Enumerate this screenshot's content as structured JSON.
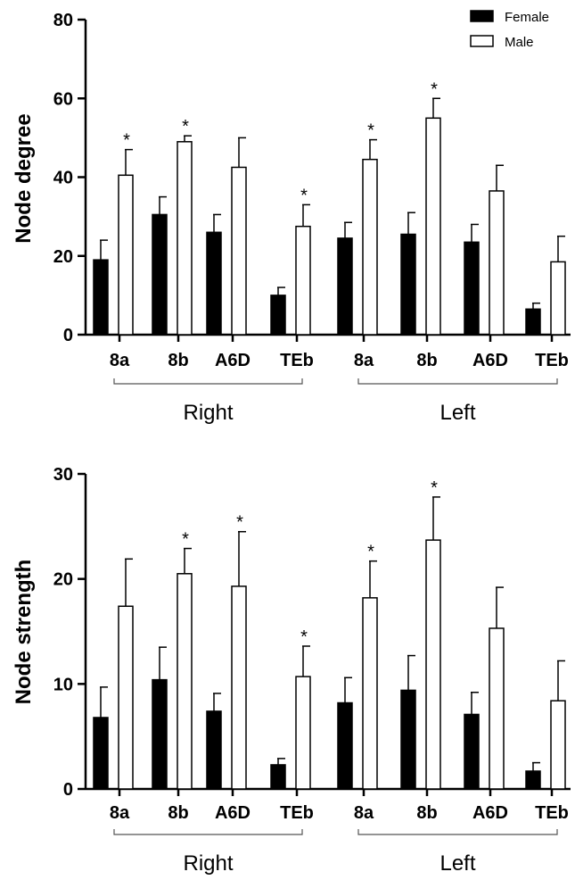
{
  "legend": [
    {
      "name": "Female",
      "color": "#000000"
    },
    {
      "name": "Male",
      "color": "#ffffff"
    }
  ],
  "chart_data": [
    {
      "type": "bar",
      "ylabel": "Node degree",
      "ylim": [
        0,
        80
      ],
      "yticks": [
        0,
        20,
        40,
        60,
        80
      ],
      "categories": [
        "8a",
        "8b",
        "A6D",
        "TEb",
        "8a",
        "8b",
        "A6D",
        "TEb"
      ],
      "groups": [
        {
          "label": "Right",
          "categories": [
            0,
            1,
            2,
            3
          ]
        },
        {
          "label": "Left",
          "categories": [
            4,
            5,
            6,
            7
          ]
        }
      ],
      "series": [
        {
          "name": "Female",
          "values": [
            19,
            30.5,
            26,
            10,
            24.5,
            25.5,
            23.5,
            6.5
          ],
          "errors": [
            5,
            4.5,
            4.5,
            2,
            4,
            5.5,
            4.5,
            1.5
          ]
        },
        {
          "name": "Male",
          "values": [
            40.5,
            49,
            42.5,
            27.5,
            44.5,
            55,
            36.5,
            18.5
          ],
          "errors": [
            6.5,
            1.5,
            7.5,
            5.5,
            5,
            5,
            6.5,
            6.5
          ]
        }
      ],
      "significance": [
        {
          "category": 0,
          "series": "Male",
          "mark": "*"
        },
        {
          "category": 1,
          "series": "Male",
          "mark": "*"
        },
        {
          "category": 3,
          "series": "Male",
          "mark": "*"
        },
        {
          "category": 4,
          "series": "Male",
          "mark": "*"
        },
        {
          "category": 5,
          "series": "Male",
          "mark": "*"
        }
      ]
    },
    {
      "type": "bar",
      "ylabel": "Node strength",
      "ylim": [
        0,
        30
      ],
      "yticks": [
        0,
        10,
        20,
        30
      ],
      "categories": [
        "8a",
        "8b",
        "A6D",
        "TEb",
        "8a",
        "8b",
        "A6D",
        "TEb"
      ],
      "groups": [
        {
          "label": "Right",
          "categories": [
            0,
            1,
            2,
            3
          ]
        },
        {
          "label": "Left",
          "categories": [
            4,
            5,
            6,
            7
          ]
        }
      ],
      "series": [
        {
          "name": "Female",
          "values": [
            6.8,
            10.4,
            7.4,
            2.3,
            8.2,
            9.4,
            7.1,
            1.7
          ],
          "errors": [
            2.9,
            3.1,
            1.7,
            0.6,
            2.4,
            3.3,
            2.1,
            0.8
          ]
        },
        {
          "name": "Male",
          "values": [
            17.4,
            20.5,
            19.3,
            10.7,
            18.2,
            23.7,
            15.3,
            8.4
          ],
          "errors": [
            4.5,
            2.4,
            5.2,
            2.9,
            3.5,
            4.1,
            3.9,
            3.8
          ]
        }
      ],
      "significance": [
        {
          "category": 1,
          "series": "Male",
          "mark": "*"
        },
        {
          "category": 2,
          "series": "Male",
          "mark": "*"
        },
        {
          "category": 3,
          "series": "Male",
          "mark": "*"
        },
        {
          "category": 4,
          "series": "Male",
          "mark": "*"
        },
        {
          "category": 5,
          "series": "Male",
          "mark": "*"
        }
      ]
    }
  ]
}
